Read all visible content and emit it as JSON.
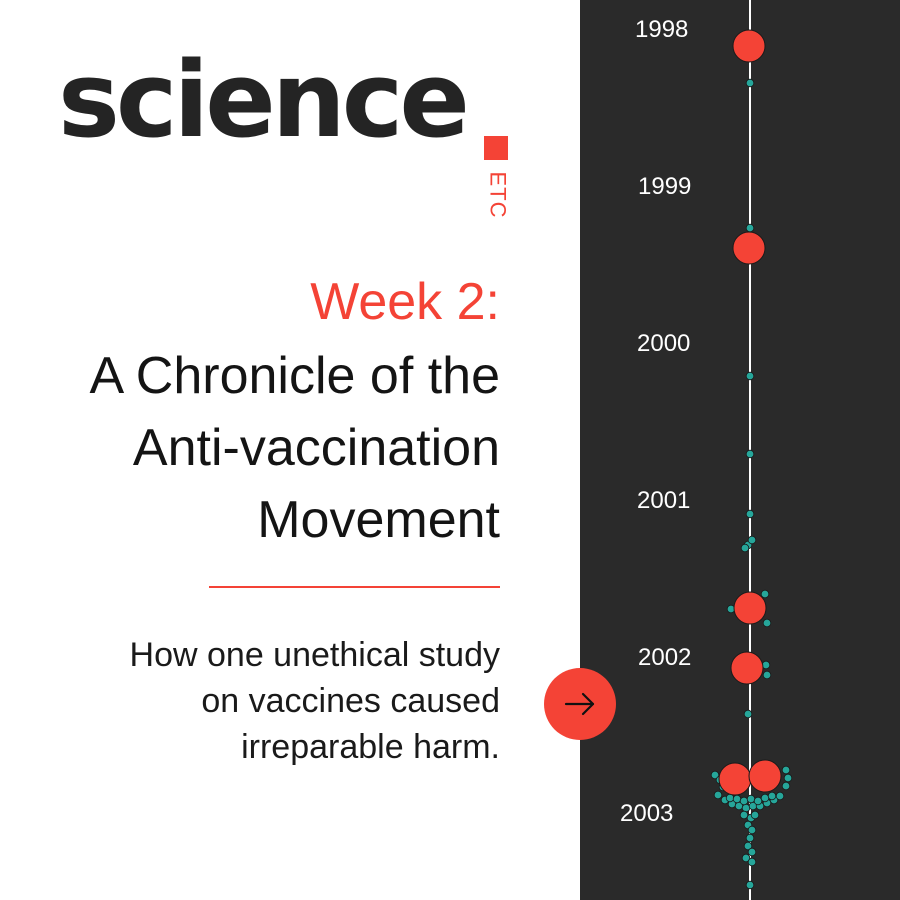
{
  "colors": {
    "accent": "#f44336",
    "dark_text": "#242424",
    "panel_bg": "#2a2a2a",
    "timeline_line": "#ffffff",
    "small_dot": "#26a69a",
    "big_dot": "#f44336"
  },
  "logo": {
    "word": "science",
    "suffix": "ETC"
  },
  "header": {
    "week": "Week 2:",
    "title_lines": [
      "A Chronicle of the",
      "Anti-vaccination",
      "Movement"
    ]
  },
  "subtitle_lines": [
    "How one unethical study",
    "on vaccines caused",
    "irreparable harm."
  ],
  "next_button": {
    "icon": "arrow-right-icon"
  },
  "timeline": {
    "years": [
      "1998",
      "1999",
      "2000",
      "2001",
      "2002",
      "2003"
    ]
  }
}
